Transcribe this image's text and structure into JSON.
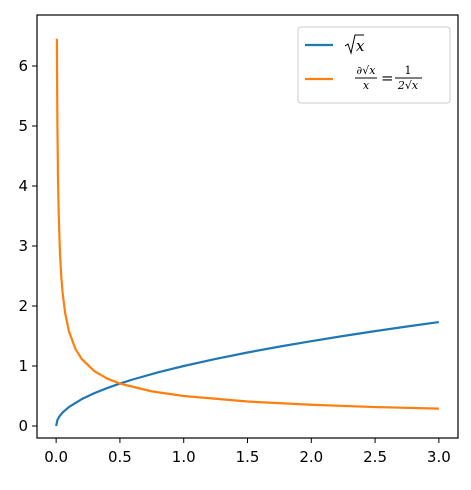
{
  "chart_data": {
    "type": "line",
    "title": "",
    "xlabel": "",
    "ylabel": "",
    "xlim": [
      -0.15,
      3.15
    ],
    "ylim": [
      -0.2,
      6.85
    ],
    "x_ticks": [
      0.0,
      0.5,
      1.0,
      1.5,
      2.0,
      2.5,
      3.0
    ],
    "x_tick_labels": [
      "0.0",
      "0.5",
      "1.0",
      "1.5",
      "2.0",
      "2.5",
      "3.0"
    ],
    "y_ticks": [
      0,
      1,
      2,
      3,
      4,
      5,
      6
    ],
    "y_tick_labels": [
      "0",
      "1",
      "2",
      "3",
      "4",
      "5",
      "6"
    ],
    "grid": false,
    "legend_position": "top-right",
    "series": [
      {
        "name": "√x",
        "color": "#1f77b4",
        "x": [
          0,
          0.01,
          0.025,
          0.05,
          0.1,
          0.2,
          0.3,
          0.4,
          0.5,
          0.6,
          0.8,
          1.0,
          1.25,
          1.5,
          1.75,
          2.0,
          2.25,
          2.5,
          2.75,
          3.0
        ],
        "y": [
          0,
          0.1,
          0.158,
          0.224,
          0.316,
          0.447,
          0.548,
          0.632,
          0.707,
          0.775,
          0.894,
          1.0,
          1.118,
          1.225,
          1.323,
          1.414,
          1.5,
          1.581,
          1.658,
          1.732
        ]
      },
      {
        "name": "∂√x / x = 1 / 2√x",
        "legend_left_num": "∂√x",
        "legend_left_den": "x",
        "legend_equals": "=",
        "legend_right_num": "1",
        "legend_right_den": "2√x",
        "color": "#ff7f0e",
        "x": [
          0.006,
          0.008,
          0.01,
          0.015,
          0.02,
          0.03,
          0.04,
          0.05,
          0.07,
          0.1,
          0.15,
          0.2,
          0.3,
          0.4,
          0.5,
          0.75,
          1.0,
          1.5,
          2.0,
          2.5,
          3.0
        ],
        "y": [
          6.455,
          5.59,
          5.0,
          4.082,
          3.536,
          2.887,
          2.5,
          2.236,
          1.89,
          1.581,
          1.291,
          1.118,
          0.913,
          0.791,
          0.707,
          0.577,
          0.5,
          0.408,
          0.354,
          0.316,
          0.289
        ]
      }
    ]
  }
}
